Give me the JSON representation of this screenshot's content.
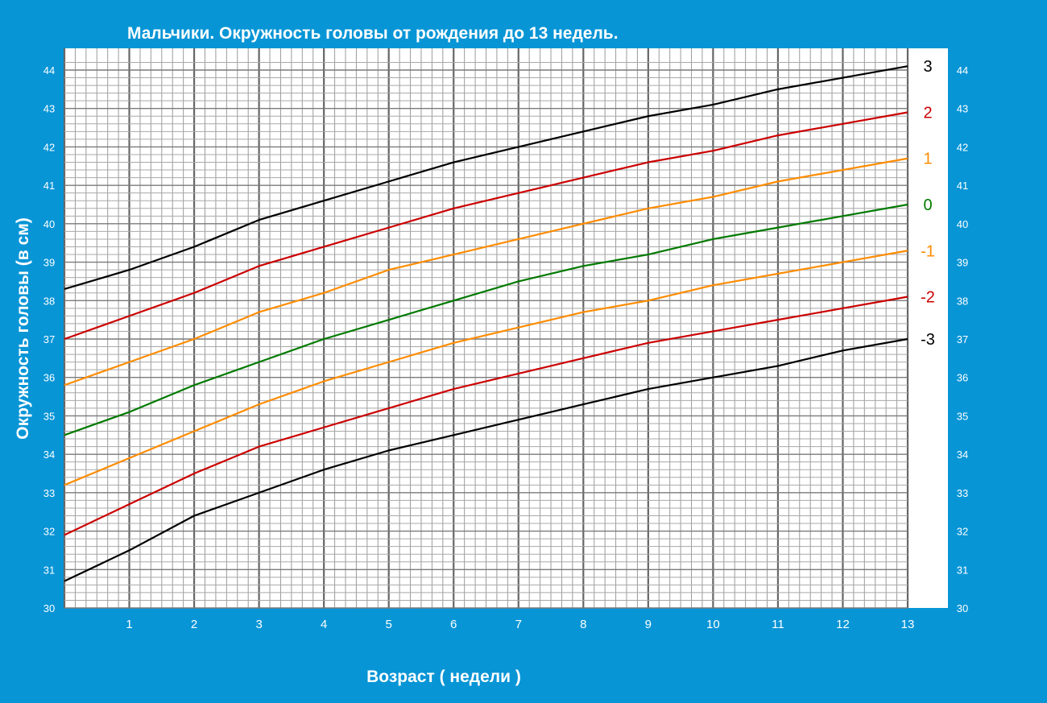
{
  "chart_data": {
    "type": "line",
    "title": "Мальчики. Окружность головы от рождения до 13 недель.",
    "xlabel": "Возраст ( недели )",
    "ylabel": "Окружность головы (в см)",
    "xlim": [
      0,
      13
    ],
    "ylim": [
      30,
      44
    ],
    "x_ticks": [
      "1",
      "2",
      "3",
      "4",
      "5",
      "6",
      "7",
      "8",
      "9",
      "10",
      "11",
      "12",
      "13"
    ],
    "y_ticks": [
      "30",
      "31",
      "32",
      "33",
      "34",
      "35",
      "36",
      "37",
      "38",
      "39",
      "40",
      "41",
      "42",
      "43",
      "44"
    ],
    "grid": true,
    "x": [
      0,
      1,
      2,
      3,
      4,
      5,
      6,
      7,
      8,
      9,
      10,
      11,
      12,
      13
    ],
    "series": [
      {
        "name": "3",
        "color": "#000000",
        "values": [
          38.3,
          38.8,
          39.4,
          40.1,
          40.6,
          41.1,
          41.6,
          42.0,
          42.4,
          42.8,
          43.1,
          43.5,
          43.8,
          44.1
        ]
      },
      {
        "name": "2",
        "color": "#cc0000",
        "values": [
          37.0,
          37.6,
          38.2,
          38.9,
          39.4,
          39.9,
          40.4,
          40.8,
          41.2,
          41.6,
          41.9,
          42.3,
          42.6,
          42.9
        ]
      },
      {
        "name": "1",
        "color": "#ff8c00",
        "values": [
          35.8,
          36.4,
          37.0,
          37.7,
          38.2,
          38.8,
          39.2,
          39.6,
          40.0,
          40.4,
          40.7,
          41.1,
          41.4,
          41.7
        ]
      },
      {
        "name": "0",
        "color": "#007a00",
        "values": [
          34.5,
          35.1,
          35.8,
          36.4,
          37.0,
          37.5,
          38.0,
          38.5,
          38.9,
          39.2,
          39.6,
          39.9,
          40.2,
          40.5
        ]
      },
      {
        "name": "-1",
        "color": "#ff8c00",
        "values": [
          33.2,
          33.9,
          34.6,
          35.3,
          35.9,
          36.4,
          36.9,
          37.3,
          37.7,
          38.0,
          38.4,
          38.7,
          39.0,
          39.3
        ]
      },
      {
        "name": "-2",
        "color": "#cc0000",
        "values": [
          31.9,
          32.7,
          33.5,
          34.2,
          34.7,
          35.2,
          35.7,
          36.1,
          36.5,
          36.9,
          37.2,
          37.5,
          37.8,
          38.1
        ]
      },
      {
        "name": "-3",
        "color": "#000000",
        "values": [
          30.7,
          31.5,
          32.4,
          33.0,
          33.6,
          34.1,
          34.5,
          34.9,
          35.3,
          35.7,
          36.0,
          36.3,
          36.7,
          37.0
        ]
      }
    ]
  }
}
